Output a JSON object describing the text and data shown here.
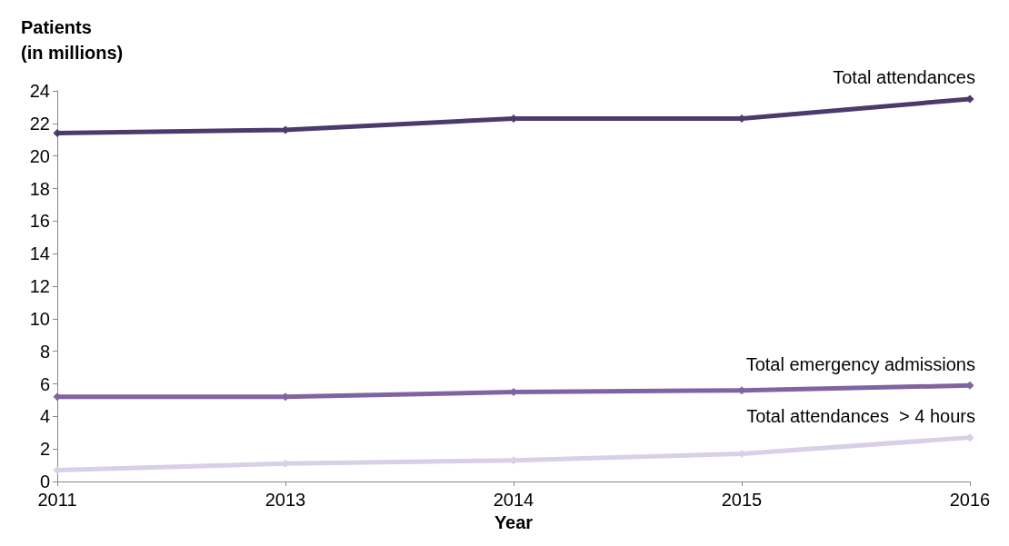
{
  "chart_data": {
    "type": "line",
    "xlabel": "Year",
    "ylabel": "Patients\n(in millions)",
    "categories": [
      "2011",
      "2013",
      "2014",
      "2015",
      "2016"
    ],
    "ylim": [
      0,
      24
    ],
    "yticks": [
      0,
      2,
      4,
      6,
      8,
      10,
      12,
      14,
      16,
      18,
      20,
      22,
      24
    ],
    "marker": "diamond",
    "line_style": "solid",
    "series": [
      {
        "name": "Total attendances",
        "color": "#4b3a6b",
        "values": [
          21.4,
          21.6,
          22.3,
          22.3,
          23.5
        ]
      },
      {
        "name": "Total emergency admissions",
        "color": "#8064a2",
        "values": [
          5.2,
          5.2,
          5.5,
          5.6,
          5.9
        ]
      },
      {
        "name": "Total attendances  > 4 hours",
        "color": "#d9cfe6",
        "values": [
          0.7,
          1.1,
          1.3,
          1.7,
          2.7
        ]
      }
    ]
  }
}
